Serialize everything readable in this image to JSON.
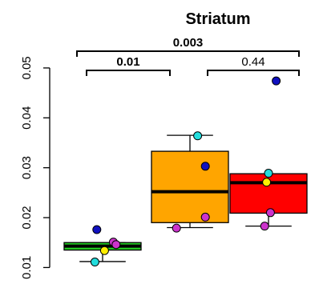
{
  "chart_data": {
    "type": "box",
    "title": "Striatum",
    "xlabel": "",
    "ylabel": "",
    "ylim": [
      0.0075,
      0.0548
    ],
    "yticks": [
      0.01,
      0.02,
      0.03,
      0.04,
      0.05
    ],
    "ytick_labels": [
      "0.01",
      "0.02",
      "0.03",
      "0.04",
      "0.05"
    ],
    "groups": [
      {
        "fill": "#22cc22",
        "whisker_low": 0.0112,
        "q1": 0.0135,
        "median": 0.0143,
        "q3": 0.015,
        "whisker_high": 0.015,
        "points": [
          {
            "dx": -0.15,
            "y": 0.0176,
            "color": "#1010c0"
          },
          {
            "dx": 0.28,
            "y": 0.0151,
            "color": "#cc33cc"
          },
          {
            "dx": 0.35,
            "y": 0.0146,
            "color": "#cc33cc"
          },
          {
            "dx": 0.05,
            "y": 0.0134,
            "color": "#ffee00"
          },
          {
            "dx": -0.2,
            "y": 0.0111,
            "color": "#22dddd"
          }
        ]
      },
      {
        "fill": "#ffa500",
        "whisker_low": 0.018,
        "q1": 0.019,
        "median": 0.0252,
        "q3": 0.0333,
        "whisker_high": 0.0365,
        "points": [
          {
            "dx": 0.2,
            "y": 0.0364,
            "color": "#22dddd"
          },
          {
            "dx": 0.4,
            "y": 0.0303,
            "color": "#1010c0"
          },
          {
            "dx": 0.4,
            "y": 0.0201,
            "color": "#cc33cc"
          },
          {
            "dx": -0.35,
            "y": 0.0179,
            "color": "#cc33cc"
          }
        ]
      },
      {
        "fill": "#ff0000",
        "whisker_low": 0.0183,
        "q1": 0.0209,
        "median": 0.027,
        "q3": 0.0288,
        "whisker_high": 0.0288,
        "points": [
          {
            "dx": 0.2,
            "y": 0.0474,
            "color": "#1010c0"
          },
          {
            "dx": 0.0,
            "y": 0.0289,
            "color": "#22dddd"
          },
          {
            "dx": -0.05,
            "y": 0.0271,
            "color": "#ffee00"
          },
          {
            "dx": 0.05,
            "y": 0.021,
            "color": "#cc33cc"
          },
          {
            "dx": -0.1,
            "y": 0.0183,
            "color": "#cc33cc"
          }
        ]
      }
    ],
    "comparisons": [
      {
        "from": 0,
        "to": 1,
        "label": "0.01",
        "bold": true
      },
      {
        "from": 1,
        "to": 2,
        "label": "0.44",
        "bold": false
      },
      {
        "from": 0,
        "to": 2,
        "label": "0.003",
        "bold": true
      }
    ]
  }
}
